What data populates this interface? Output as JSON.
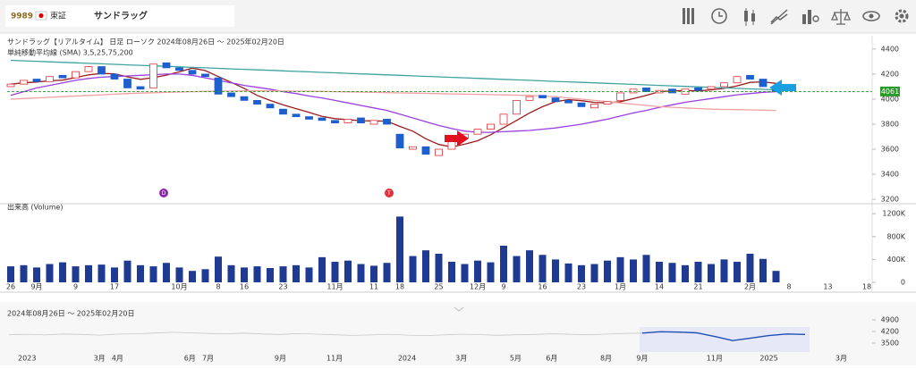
{
  "header": {
    "code": "9989",
    "market": "東証",
    "name": "サンドラッグ"
  },
  "chart_data": [
    {
      "type": "candlestick",
      "title": "サンドラッグ【リアルタイム】 日足 ローソク 2024年08月26日 ～ 2025年02月20日",
      "subtitle": "単純移動平均線 (SMA) 3,5,25,75,200",
      "up_color": "#e0303a",
      "down_color": "#1d5fcf",
      "categories": [
        "26",
        null,
        "9月",
        null,
        null,
        "9",
        null,
        null,
        "17",
        null,
        null,
        null,
        null,
        "10月",
        null,
        null,
        "8",
        null,
        "16",
        null,
        null,
        "23",
        null,
        null,
        null,
        "11月",
        null,
        null,
        "11",
        null,
        "18",
        null,
        null,
        "25",
        null,
        null,
        "12月",
        null,
        "9",
        null,
        null,
        "16",
        null,
        null,
        "23",
        null,
        null,
        "1月",
        null,
        null,
        "14",
        null,
        null,
        "21",
        null,
        null,
        null,
        "2月",
        null,
        null,
        "8",
        null,
        null,
        "13",
        null,
        null,
        "18"
      ],
      "open": [
        4100,
        4120,
        4160,
        4140,
        4190,
        4170,
        4220,
        4260,
        4200,
        4160,
        4100,
        4090,
        4290,
        4250,
        4230,
        4200,
        4170,
        4050,
        4020,
        3990,
        3960,
        3920,
        3880,
        3860,
        3850,
        3830,
        3810,
        3850,
        3800,
        3840,
        3720,
        3600,
        3620,
        3550,
        3600,
        3690,
        3720,
        3760,
        3800,
        3880,
        3990,
        4030,
        4010,
        3990,
        3970,
        3930,
        3960,
        3990,
        4050,
        4090,
        4050,
        4080,
        4040,
        4090,
        4080,
        4100,
        4130,
        4190,
        4160,
        4100,
        null,
        null,
        null,
        null,
        null,
        null,
        null
      ],
      "close": [
        4120,
        4150,
        4140,
        4180,
        4170,
        4220,
        4260,
        4200,
        4160,
        4090,
        4080,
        4280,
        4250,
        4230,
        4200,
        4180,
        4040,
        4020,
        3990,
        3960,
        3930,
        3880,
        3860,
        3840,
        3830,
        3810,
        3840,
        3810,
        3830,
        3800,
        3610,
        3620,
        3560,
        3600,
        3700,
        3720,
        3760,
        3800,
        3880,
        3990,
        4020,
        4010,
        3980,
        3970,
        3940,
        3960,
        3980,
        4050,
        4080,
        4060,
        4070,
        4050,
        4080,
        4070,
        4100,
        4130,
        4180,
        4160,
        4100,
        4061,
        null,
        null,
        null,
        null,
        null,
        null,
        null
      ],
      "series": [
        {
          "color": "#9b1c1c",
          "values": [
            4120,
            4130,
            4137,
            4147,
            4152,
            4172,
            4194,
            4206,
            4202,
            4178,
            4158,
            4172,
            4192,
            4218,
            4248,
            4228,
            4180,
            4134,
            4086,
            4030,
            3990,
            3954,
            3924,
            3894,
            3862,
            3844,
            3836,
            3828,
            3826,
            3824,
            3782,
            3744,
            3684,
            3638,
            3618,
            3640,
            3668,
            3716,
            3772,
            3830,
            3890,
            3940,
            3980,
            3996,
            3988,
            3974,
            3970,
            3980,
            4004,
            4030,
            4060,
            4066,
            4068,
            4066,
            4074,
            4086,
            4106,
            4134,
            4138,
            4126,
            null,
            null,
            null,
            null,
            null,
            null,
            null
          ]
        },
        {
          "color": "#9b3fe0",
          "values": [
            4030,
            4060,
            4090,
            4110,
            4130,
            4150,
            4165,
            4175,
            4180,
            4185,
            4190,
            4195,
            4200,
            4200,
            4190,
            4170,
            4150,
            4130,
            4110,
            4095,
            4080,
            4060,
            4045,
            4025,
            4010,
            3990,
            3970,
            3950,
            3930,
            3910,
            3880,
            3850,
            3820,
            3790,
            3765,
            3745,
            3735,
            3735,
            3740,
            3745,
            3750,
            3760,
            3770,
            3785,
            3800,
            3820,
            3840,
            3865,
            3890,
            3910,
            3935,
            3955,
            3975,
            3990,
            4005,
            4020,
            4035,
            4045,
            4055,
            4060,
            null,
            null,
            null,
            null,
            null,
            null,
            null
          ]
        },
        {
          "color": "#3fa3a0",
          "values": [
            4310,
            4306,
            4302,
            4298,
            4294,
            4290,
            4286,
            4282,
            4278,
            4274,
            4270,
            4266,
            4262,
            4258,
            4254,
            4250,
            4246,
            4242,
            4238,
            4234,
            4230,
            4226,
            4222,
            4218,
            4214,
            4210,
            4206,
            4202,
            4198,
            4194,
            4190,
            4186,
            4182,
            4178,
            4174,
            4170,
            4166,
            4162,
            4158,
            4154,
            4150,
            4146,
            4142,
            4138,
            4134,
            4130,
            4126,
            4122,
            4118,
            4114,
            4110,
            4106,
            4102,
            4098,
            4094,
            4090,
            4086,
            4082,
            4078,
            4074,
            null,
            null,
            null,
            null,
            null,
            null,
            null
          ]
        },
        {
          "color": "#f0a0a0",
          "values": [
            4000,
            4005,
            4010,
            4015,
            4020,
            4025,
            4030,
            4035,
            4040,
            4045,
            4048,
            4051,
            4054,
            4057,
            4060,
            4062,
            4064,
            4065,
            4066,
            4066,
            4066,
            4065,
            4064,
            4063,
            4062,
            4060,
            4058,
            4056,
            4054,
            4052,
            4050,
            4048,
            4046,
            4044,
            4042,
            4040,
            4038,
            4036,
            4034,
            4032,
            4030,
            4025,
            4020,
            4010,
            4000,
            3990,
            3980,
            3970,
            3960,
            3950,
            3940,
            3935,
            3930,
            3925,
            3920,
            3918,
            3916,
            3914,
            3912,
            3910,
            null,
            null,
            null,
            null,
            null,
            null,
            null
          ]
        }
      ],
      "last_price": 4061,
      "annotations": [
        "D",
        "T"
      ],
      "ylim": [
        3165,
        4435
      ],
      "yticks": [
        3200,
        3400,
        3600,
        3800,
        4000,
        4200,
        4400
      ]
    },
    {
      "type": "bar",
      "title": "出来高 (Volume)",
      "color": "#1f3a93",
      "values": [
        280000,
        300000,
        260000,
        320000,
        350000,
        280000,
        300000,
        310000,
        260000,
        380000,
        300000,
        280000,
        340000,
        260000,
        200000,
        230000,
        450000,
        300000,
        260000,
        280000,
        250000,
        280000,
        300000,
        260000,
        440000,
        360000,
        380000,
        320000,
        290000,
        340000,
        1150000,
        460000,
        560000,
        500000,
        360000,
        320000,
        380000,
        350000,
        640000,
        460000,
        560000,
        480000,
        400000,
        330000,
        300000,
        320000,
        380000,
        440000,
        400000,
        480000,
        360000,
        340000,
        300000,
        360000,
        320000,
        400000,
        360000,
        500000,
        410000,
        200000,
        null,
        null,
        null,
        null,
        null,
        null,
        null
      ],
      "ylim": [
        0,
        1250000
      ],
      "yticks": [
        0,
        {
          "value": 400000,
          "label": "400K"
        },
        {
          "value": 800000,
          "label": "800K"
        },
        {
          "value": 1200000,
          "label": "1200K"
        }
      ]
    },
    {
      "type": "line",
      "title": "2024年08月26日 ～ 2025年02月20日",
      "categories": [
        null,
        "2023",
        null,
        null,
        null,
        "3月",
        "4月",
        null,
        null,
        null,
        "6月",
        "7月",
        null,
        null,
        null,
        "9月",
        null,
        null,
        "11月",
        null,
        null,
        null,
        "2024",
        null,
        null,
        "3月",
        null,
        null,
        "5月",
        null,
        "6月",
        null,
        null,
        "8月",
        null,
        "9月",
        null,
        null,
        null,
        "11月",
        null,
        null,
        "2025",
        null,
        null,
        null,
        "3月"
      ],
      "series": [
        {
          "color": "#c8c8c8",
          "values": [
            4000,
            4030,
            3990,
            4050,
            4020,
            3980,
            4040,
            4060,
            4100,
            4150,
            4120,
            4080,
            4060,
            4100,
            4050,
            4020,
            4070,
            4040,
            4000,
            3960,
            3990,
            4030,
            3980,
            3950,
            3990,
            4040,
            4010,
            3970,
            4000,
            4020,
            4060,
            4030,
            4000,
            4040,
            4080,
            4100,
            null,
            null,
            null,
            null,
            null,
            null,
            null,
            null,
            null,
            null,
            null
          ]
        },
        {
          "color": "#1f4fb4",
          "values": [
            null,
            null,
            null,
            null,
            null,
            null,
            null,
            null,
            null,
            null,
            null,
            null,
            null,
            null,
            null,
            null,
            null,
            null,
            null,
            null,
            null,
            null,
            null,
            null,
            null,
            null,
            null,
            null,
            null,
            null,
            null,
            null,
            null,
            null,
            null,
            4100,
            4180,
            4160,
            4120,
            3900,
            3650,
            3800,
            3950,
            4050,
            4020,
            null,
            null
          ]
        }
      ],
      "ylim": [
        3070,
        5220
      ],
      "yticks": [
        3500,
        4200,
        4900
      ]
    }
  ]
}
